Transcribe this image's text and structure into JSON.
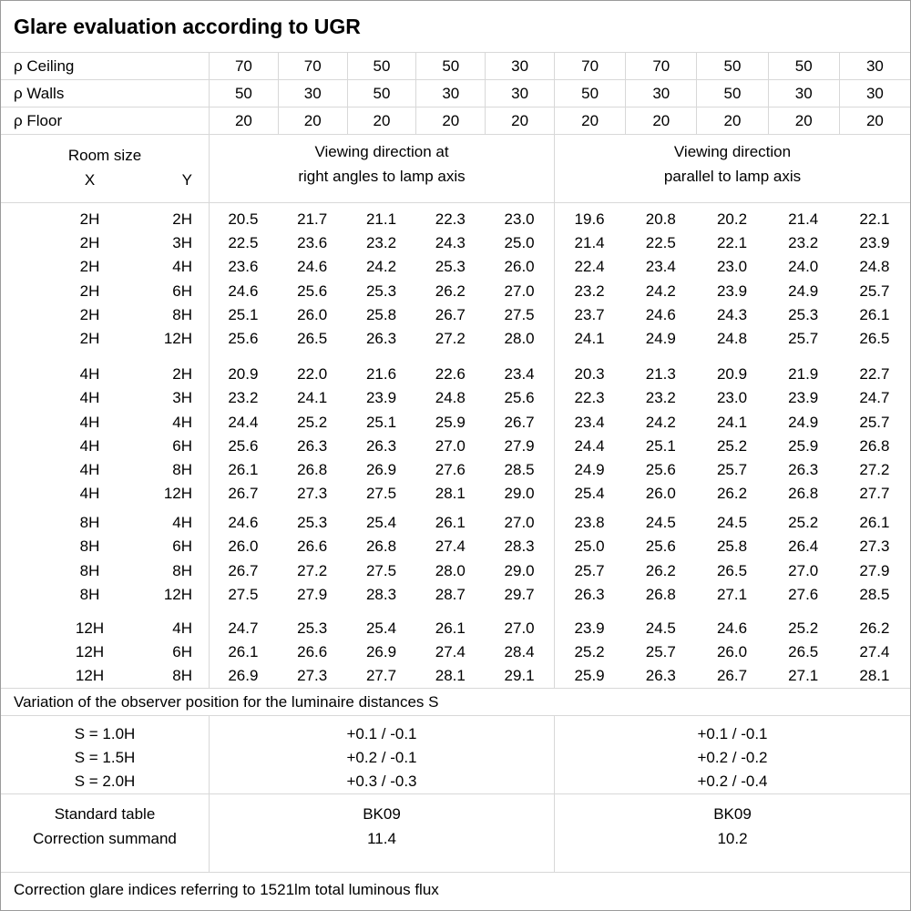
{
  "title": "Glare evaluation according to UGR",
  "reflectance_rows": [
    {
      "label": "ρ Ceiling",
      "values": [
        "70",
        "70",
        "50",
        "50",
        "30",
        "70",
        "70",
        "50",
        "50",
        "30"
      ]
    },
    {
      "label": "ρ Walls",
      "values": [
        "50",
        "30",
        "50",
        "30",
        "30",
        "50",
        "30",
        "50",
        "30",
        "30"
      ]
    },
    {
      "label": "ρ Floor",
      "values": [
        "20",
        "20",
        "20",
        "20",
        "20",
        "20",
        "20",
        "20",
        "20",
        "20"
      ]
    }
  ],
  "header": {
    "room_size": "Room size",
    "x": "X",
    "y": "Y",
    "left_group": {
      "line1": "Viewing direction at",
      "line2": "right angles to lamp axis"
    },
    "right_group": {
      "line1": "Viewing direction",
      "line2": "parallel to lamp axis"
    }
  },
  "blocks": [
    {
      "rows": [
        {
          "x": "2H",
          "y": "2H",
          "left": [
            "20.5",
            "21.7",
            "21.1",
            "22.3",
            "23.0"
          ],
          "right": [
            "19.6",
            "20.8",
            "20.2",
            "21.4",
            "22.1"
          ]
        },
        {
          "x": "2H",
          "y": "3H",
          "left": [
            "22.5",
            "23.6",
            "23.2",
            "24.3",
            "25.0"
          ],
          "right": [
            "21.4",
            "22.5",
            "22.1",
            "23.2",
            "23.9"
          ]
        },
        {
          "x": "2H",
          "y": "4H",
          "left": [
            "23.6",
            "24.6",
            "24.2",
            "25.3",
            "26.0"
          ],
          "right": [
            "22.4",
            "23.4",
            "23.0",
            "24.0",
            "24.8"
          ]
        },
        {
          "x": "2H",
          "y": "6H",
          "left": [
            "24.6",
            "25.6",
            "25.3",
            "26.2",
            "27.0"
          ],
          "right": [
            "23.2",
            "24.2",
            "23.9",
            "24.9",
            "25.7"
          ]
        },
        {
          "x": "2H",
          "y": "8H",
          "left": [
            "25.1",
            "26.0",
            "25.8",
            "26.7",
            "27.5"
          ],
          "right": [
            "23.7",
            "24.6",
            "24.3",
            "25.3",
            "26.1"
          ]
        },
        {
          "x": "2H",
          "y": "12H",
          "left": [
            "25.6",
            "26.5",
            "26.3",
            "27.2",
            "28.0"
          ],
          "right": [
            "24.1",
            "24.9",
            "24.8",
            "25.7",
            "26.5"
          ]
        }
      ]
    },
    {
      "rows": [
        {
          "x": "4H",
          "y": "2H",
          "left": [
            "20.9",
            "22.0",
            "21.6",
            "22.6",
            "23.4"
          ],
          "right": [
            "20.3",
            "21.3",
            "20.9",
            "21.9",
            "22.7"
          ]
        },
        {
          "x": "4H",
          "y": "3H",
          "left": [
            "23.2",
            "24.1",
            "23.9",
            "24.8",
            "25.6"
          ],
          "right": [
            "22.3",
            "23.2",
            "23.0",
            "23.9",
            "24.7"
          ]
        },
        {
          "x": "4H",
          "y": "4H",
          "left": [
            "24.4",
            "25.2",
            "25.1",
            "25.9",
            "26.7"
          ],
          "right": [
            "23.4",
            "24.2",
            "24.1",
            "24.9",
            "25.7"
          ]
        },
        {
          "x": "4H",
          "y": "6H",
          "left": [
            "25.6",
            "26.3",
            "26.3",
            "27.0",
            "27.9"
          ],
          "right": [
            "24.4",
            "25.1",
            "25.2",
            "25.9",
            "26.8"
          ]
        },
        {
          "x": "4H",
          "y": "8H",
          "left": [
            "26.1",
            "26.8",
            "26.9",
            "27.6",
            "28.5"
          ],
          "right": [
            "24.9",
            "25.6",
            "25.7",
            "26.3",
            "27.2"
          ]
        },
        {
          "x": "4H",
          "y": "12H",
          "left": [
            "26.7",
            "27.3",
            "27.5",
            "28.1",
            "29.0"
          ],
          "right": [
            "25.4",
            "26.0",
            "26.2",
            "26.8",
            "27.7"
          ]
        }
      ]
    },
    {
      "rows": [
        {
          "x": "8H",
          "y": "4H",
          "left": [
            "24.6",
            "25.3",
            "25.4",
            "26.1",
            "27.0"
          ],
          "right": [
            "23.8",
            "24.5",
            "24.5",
            "25.2",
            "26.1"
          ]
        },
        {
          "x": "8H",
          "y": "6H",
          "left": [
            "26.0",
            "26.6",
            "26.8",
            "27.4",
            "28.3"
          ],
          "right": [
            "25.0",
            "25.6",
            "25.8",
            "26.4",
            "27.3"
          ]
        },
        {
          "x": "8H",
          "y": "8H",
          "left": [
            "26.7",
            "27.2",
            "27.5",
            "28.0",
            "29.0"
          ],
          "right": [
            "25.7",
            "26.2",
            "26.5",
            "27.0",
            "27.9"
          ]
        },
        {
          "x": "8H",
          "y": "12H",
          "left": [
            "27.5",
            "27.9",
            "28.3",
            "28.7",
            "29.7"
          ],
          "right": [
            "26.3",
            "26.8",
            "27.1",
            "27.6",
            "28.5"
          ]
        }
      ]
    },
    {
      "rows": [
        {
          "x": "12H",
          "y": "4H",
          "left": [
            "24.7",
            "25.3",
            "25.4",
            "26.1",
            "27.0"
          ],
          "right": [
            "23.9",
            "24.5",
            "24.6",
            "25.2",
            "26.2"
          ]
        },
        {
          "x": "12H",
          "y": "6H",
          "left": [
            "26.1",
            "26.6",
            "26.9",
            "27.4",
            "28.4"
          ],
          "right": [
            "25.2",
            "25.7",
            "26.0",
            "26.5",
            "27.4"
          ]
        },
        {
          "x": "12H",
          "y": "8H",
          "left": [
            "26.9",
            "27.3",
            "27.7",
            "28.1",
            "29.1"
          ],
          "right": [
            "25.9",
            "26.3",
            "26.7",
            "27.1",
            "28.1"
          ]
        }
      ]
    }
  ],
  "variation_note": "Variation of the observer position for the luminaire distances S",
  "s_section": {
    "labels": [
      "S = 1.0H",
      "S = 1.5H",
      "S = 2.0H"
    ],
    "left": [
      "+0.1 / -0.1",
      "+0.2 / -0.1",
      "+0.3 / -0.3"
    ],
    "right": [
      "+0.1 / -0.1",
      "+0.2 / -0.2",
      "+0.2 / -0.4"
    ]
  },
  "summary": {
    "labels": [
      "Standard table",
      "Correction summand"
    ],
    "left": [
      "BK09",
      "11.4"
    ],
    "right": [
      "BK09",
      "10.2"
    ]
  },
  "footer": "Correction glare indices referring to 1521lm total luminous flux",
  "colors": {
    "border_inner": "#d8d8d8",
    "border_outer": "#9b9b9b",
    "background": "#ffffff",
    "text": "#000000"
  }
}
